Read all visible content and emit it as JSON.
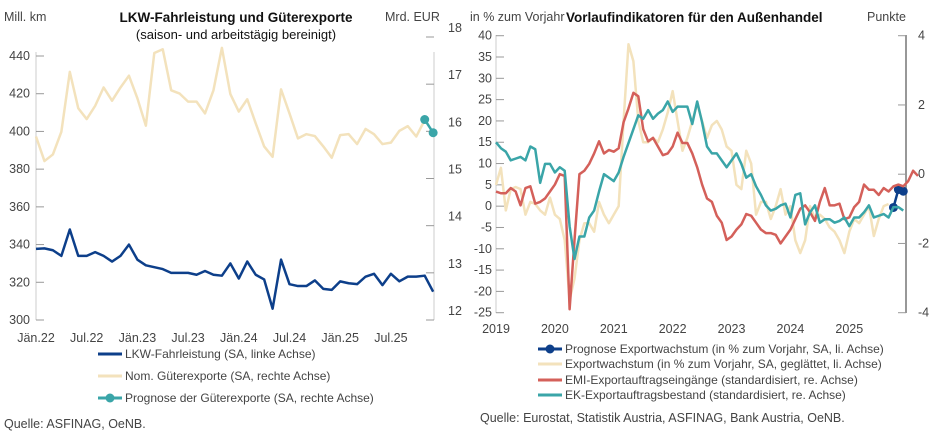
{
  "chart_data": [
    {
      "type": "line",
      "title": "LKW-Fahrleistung und Güterexporte",
      "subtitle": "(saison- und arbeitstägig bereinigt)",
      "ylabel_left": "Mill. km",
      "ylabel_right": "Mrd. EUR",
      "ylim_left": [
        300,
        440
      ],
      "ylim_right": [
        12,
        18
      ],
      "yticks_left": [
        "300",
        "320",
        "340",
        "360",
        "380",
        "400",
        "420",
        "440"
      ],
      "yticks_right": [
        "12",
        "13",
        "14",
        "15",
        "16",
        "17",
        "18"
      ],
      "xtick_labels": [
        "Jän.22",
        "Jul.22",
        "Jän.23",
        "Jul.23",
        "Jän.24",
        "Jul.24",
        "Jän.25",
        "Jul.25"
      ],
      "x_start": "2022-01",
      "x_frequency": "monthly",
      "legend_position": "bottom",
      "series": [
        {
          "name": "LKW-Fahrleistung (SA, linke Achse)",
          "axis": "left",
          "color": "#0d3f8a",
          "start": "2022-01",
          "values": [
            337.7,
            338,
            337,
            334,
            348,
            334,
            334,
            336,
            334,
            331,
            334,
            340,
            332,
            329,
            328,
            327,
            325,
            325,
            325,
            324,
            326,
            324,
            323.5,
            330,
            322,
            331,
            324,
            321.5,
            306,
            332,
            319,
            318,
            318,
            321,
            316.5,
            316,
            320.5,
            319.5,
            319,
            323,
            324.5,
            318.5,
            324.5,
            320.5,
            323,
            323,
            323.5,
            315
          ]
        },
        {
          "name": "Nom. Güterexporte (SA, rechte Achse)",
          "axis": "right",
          "color": "#f3e2bc",
          "start": "2022-01",
          "values": [
            15.89,
            15.37,
            15.51,
            15.99,
            17.26,
            16.49,
            16.26,
            16.54,
            16.93,
            16.65,
            16.93,
            17.18,
            16.7,
            16.12,
            17.66,
            17.74,
            16.87,
            16.8,
            16.63,
            16.63,
            16.38,
            16.87,
            17.77,
            16.79,
            16.42,
            16.68,
            16.17,
            15.68,
            15.46,
            16.89,
            16.38,
            15.85,
            15.94,
            15.9,
            15.68,
            15.44,
            15.92,
            15.94,
            15.73,
            16.05,
            15.94,
            15.73,
            15.76,
            16.01,
            16.11,
            15.89,
            16.24
          ]
        },
        {
          "name": "Prognose der Güterexporte (SA, rechte Achse)",
          "axis": "right",
          "color": "#3aa5a8",
          "start": "2025-11",
          "values": [
            16.25,
            15.97
          ]
        }
      ],
      "source": "Quelle: ASFINAG, OeNB."
    },
    {
      "type": "line",
      "title": "Vorlaufindikatoren für den Außenhandel",
      "ylabel_left": "in % zum Vorjahr",
      "ylabel_right": "Punkte",
      "ylim_left": [
        -25,
        40
      ],
      "ylim_right": [
        -4,
        4
      ],
      "yticks_left": [
        "-25",
        "-20",
        "-15",
        "-10",
        "-5",
        "0",
        "5",
        "10",
        "15",
        "20",
        "25",
        "30",
        "35",
        "40"
      ],
      "yticks_right": [
        "-4",
        "-2",
        "0",
        "2",
        "4"
      ],
      "xtick_labels": [
        "2019",
        "2020",
        "2021",
        "2022",
        "2023",
        "2024",
        "2025"
      ],
      "x_start": "2019-01",
      "x_frequency": "monthly",
      "legend_position": "bottom",
      "series": [
        {
          "name": "Prognose Exportwachstum (in % zum Vorjahr, SA, li. Achse)",
          "axis": "left",
          "color": "#0d3f8a",
          "start": "2025-10",
          "values": [
            -0.3,
            3.9,
            3.5
          ]
        },
        {
          "name": "Exportwachstum (in % zum Vorjahr, SA, geglättet, li. Achse)",
          "axis": "left",
          "color": "#f3e2bc",
          "start": "2019-01",
          "values": [
            5,
            9,
            -1,
            4,
            4.5,
            4,
            -2,
            1,
            0.5,
            -1,
            -2,
            2,
            -2,
            -3,
            -8,
            -22,
            -17,
            -8,
            -4,
            -4,
            -6,
            1,
            -2,
            -4,
            -2,
            0,
            20,
            38,
            34,
            20,
            15,
            15,
            16,
            15,
            18,
            22,
            27,
            20,
            13,
            16,
            20,
            24,
            20,
            16,
            19,
            20,
            18,
            14,
            13,
            5,
            4,
            13,
            10,
            -2,
            1,
            1,
            -3,
            0,
            4,
            -2,
            0,
            -8,
            -11,
            -8,
            0,
            -3,
            -2,
            -3,
            -5,
            -6,
            -8,
            -11,
            -6,
            -3,
            -4,
            -2,
            0,
            -7,
            -3,
            0,
            0.5
          ]
        },
        {
          "name": "EMI-Exportauftragseingänge (standardisiert, re. Achse)",
          "axis": "right",
          "color": "#d4605a",
          "start": "2019-01",
          "values": [
            -0.5,
            -0.55,
            -0.55,
            -0.4,
            -0.5,
            -0.9,
            -0.4,
            -0.35,
            -0.85,
            -0.8,
            -0.7,
            -0.5,
            -0.3,
            0,
            -0.05,
            -3.9,
            -1.9,
            0,
            0.1,
            0.3,
            0.6,
            0.95,
            0.6,
            0.7,
            0.65,
            0.75,
            1.5,
            1.9,
            2.35,
            2.25,
            1.3,
            0.95,
            1.05,
            0.8,
            0.55,
            0.6,
            0.8,
            1.2,
            0.9,
            0.9,
            0.6,
            0.2,
            -0.3,
            -0.7,
            -0.8,
            -1.2,
            -1.4,
            -1.9,
            -1.8,
            -1.6,
            -1.45,
            -1.15,
            -1.2,
            -1.4,
            -1.6,
            -1.7,
            -1.7,
            -1.75,
            -2.0,
            -1.8,
            -1.6,
            -1.3,
            -1.0,
            -0.9,
            -1.1,
            -1.35,
            -0.8,
            -0.4,
            -0.9,
            -0.9,
            -0.85,
            -1.3,
            -1.25,
            -0.95,
            -0.8,
            -0.3,
            -0.45,
            -0.45,
            -0.6,
            -0.4,
            -0.5,
            -0.35,
            -0.3,
            -0.35,
            -0.2,
            0.1,
            -0.05
          ]
        },
        {
          "name": "EK-Exportauftragsbestand (standardisiert, re. Achse)",
          "axis": "right",
          "color": "#3aa5a8",
          "start": "2019-01",
          "values": [
            0.92,
            0.75,
            0.65,
            0.4,
            0.45,
            0.5,
            0.4,
            0.8,
            0.72,
            -0.25,
            0.3,
            0.3,
            0.05,
            0.2,
            0.1,
            -1.5,
            -2.45,
            -1.8,
            -1.8,
            -1.25,
            -1.05,
            -0.5,
            0.0,
            -0.1,
            -0.2,
            0.05,
            0.5,
            0.9,
            1.3,
            1.7,
            1.6,
            1.85,
            1.6,
            1.75,
            1.85,
            2.1,
            1.8,
            1.95,
            1.95,
            1.95,
            1.45,
            2.1,
            1.5,
            0.8,
            0.6,
            0.6,
            0.4,
            0.2,
            0.4,
            0.6,
            0.3,
            -0.1,
            0.0,
            -0.35,
            -0.6,
            -0.9,
            -1.05,
            -1.0,
            -0.9,
            -0.85,
            -1.25,
            -0.6,
            -0.55,
            -1.45,
            -1.1,
            -0.9,
            -1.4,
            -1.3,
            -1.3,
            -1.4,
            -1.35,
            -1.25,
            -1.5,
            -1.25,
            -1.25,
            -1.1,
            -0.9,
            -1.25,
            -1.2,
            -1.15,
            -1.25,
            -0.95,
            -0.95,
            -1.05
          ]
        }
      ],
      "source": "Quelle: Eurostat, Statistik Austria, ASFINAG, Bank Austria, OeNB."
    }
  ]
}
